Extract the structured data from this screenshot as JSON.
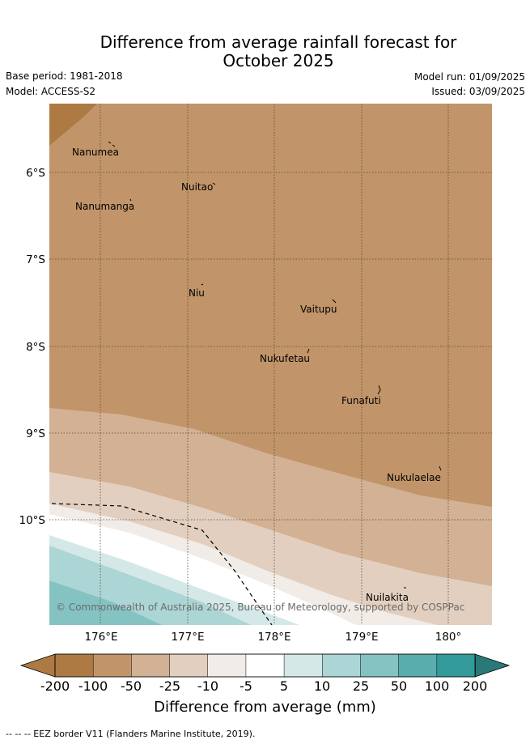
{
  "title_line1": "Difference from average rainfall forecast for",
  "title_line2": "October 2025",
  "meta": {
    "base_period": "Base period: 1981-2018",
    "model": "Model: ACCESS-S2",
    "model_run": "Model run: 01/09/2025",
    "issued": "Issued: 03/09/2025"
  },
  "axes": {
    "lon_ticks": [
      "176°E",
      "177°E",
      "178°E",
      "179°E",
      "180°"
    ],
    "lat_ticks": [
      "6°S",
      "7°S",
      "8°S",
      "9°S",
      "10°S"
    ]
  },
  "islands": [
    {
      "name": "Nanumea"
    },
    {
      "name": "Nuitao"
    },
    {
      "name": "Nanumanga"
    },
    {
      "name": "Niu"
    },
    {
      "name": "Vaitupu"
    },
    {
      "name": "Nukufetau"
    },
    {
      "name": "Funafuti"
    },
    {
      "name": "Nukulaelae"
    },
    {
      "name": "Nuilakita"
    }
  ],
  "copyright": "© Commonwealth of Australia 2025, Bureau of Meteorology, supported by COSPPac",
  "colorbar": {
    "title": "Difference from average (mm)",
    "ticks": [
      "-200",
      "-100",
      "-50",
      "-25",
      "-10",
      "-5",
      "5",
      "10",
      "25",
      "50",
      "100",
      "200"
    ],
    "colors": [
      "#ad7a44",
      "#c19569",
      "#d3b194",
      "#e2cfbf",
      "#f1ece7",
      "#ffffff",
      "#d4e8e8",
      "#acd5d5",
      "#85c3c3",
      "#5aadad",
      "#339a9a",
      "#2a7878"
    ]
  },
  "footnote": "--  --  -- EEZ border V11 (Flanders Marine Institute, 2019)."
}
